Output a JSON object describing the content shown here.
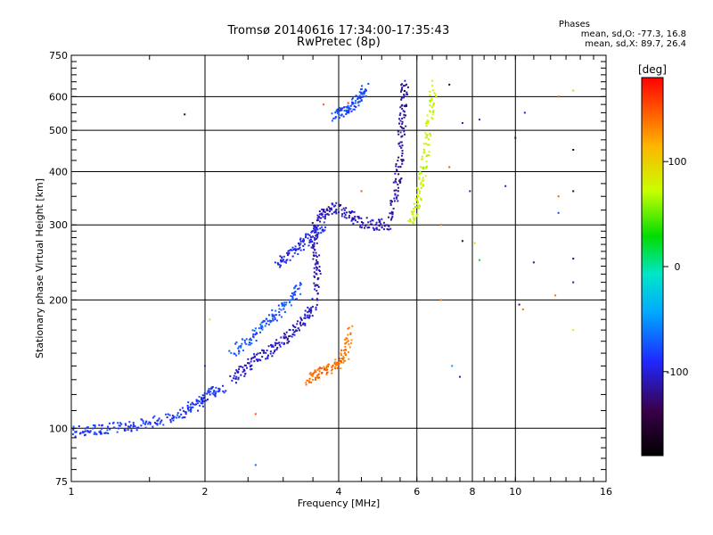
{
  "chart_data": {
    "type": "scatter",
    "title": "Tromsø 20140616 17:34:00-17:35:43",
    "subtitle": "RwPretec (8p)",
    "xlabel": "Frequency [MHz]",
    "ylabel": "Stationary phase Virtual Height [km]",
    "x_scale": "log",
    "y_scale": "log",
    "xlim": [
      1,
      16
    ],
    "ylim": [
      75,
      750
    ],
    "x_ticks": [
      1,
      2,
      4,
      6,
      8,
      10,
      16
    ],
    "y_ticks": [
      75,
      100,
      200,
      300,
      400,
      500,
      600,
      750
    ],
    "grid": true,
    "phase_stats": {
      "heading": "Phases",
      "o_mode": "mean, sd,O: -77.3, 16.8",
      "x_mode": "mean, sd,X:  89.7, 26.4"
    },
    "colorbar": {
      "label": "[deg]",
      "range": [
        -180,
        180
      ],
      "ticks": [
        "100",
        "0",
        "-100"
      ],
      "tick_values": [
        100,
        0,
        -100
      ]
    },
    "traces": [
      {
        "x": [
          1.0,
          1.1,
          1.2,
          1.35,
          1.5,
          1.7,
          1.85,
          1.95,
          2.05,
          2.2
        ],
        "y": [
          98,
          99,
          100,
          101,
          103,
          106,
          111,
          116,
          121,
          125
        ],
        "phase": -85
      },
      {
        "x": [
          2.3,
          2.45,
          2.6,
          2.8,
          3.0,
          3.2,
          3.4,
          3.55
        ],
        "y": [
          130,
          138,
          145,
          152,
          160,
          170,
          182,
          200
        ],
        "phase": -105
      },
      {
        "x": [
          3.55,
          3.6,
          3.5,
          3.55,
          3.7,
          3.9,
          4.2,
          4.5,
          4.9,
          5.2
        ],
        "y": [
          210,
          240,
          270,
          300,
          320,
          330,
          320,
          305,
          300,
          302
        ],
        "phase": -110
      },
      {
        "x": [
          5.2,
          5.4,
          5.5,
          5.55,
          5.6,
          5.65
        ],
        "y": [
          310,
          360,
          420,
          500,
          580,
          650
        ],
        "phase": -115
      },
      {
        "x": [
          5.8,
          6.0,
          6.15,
          6.3,
          6.45,
          6.55
        ],
        "y": [
          300,
          330,
          380,
          450,
          540,
          640
        ],
        "phase": 75
      },
      {
        "x": [
          3.4,
          3.6,
          3.8,
          4.0,
          4.15,
          4.25
        ],
        "y": [
          130,
          134,
          138,
          142,
          150,
          170
        ],
        "phase": 140
      },
      {
        "x": [
          2.9,
          3.1,
          3.3,
          3.5,
          3.7
        ],
        "y": [
          240,
          255,
          270,
          285,
          300
        ],
        "phase": -95
      },
      {
        "x": [
          3.9,
          4.1,
          4.3,
          4.5,
          4.6
        ],
        "y": [
          540,
          555,
          570,
          600,
          630
        ],
        "phase": -80
      },
      {
        "x": [
          2.3,
          2.5,
          2.7,
          2.9,
          3.1,
          3.3
        ],
        "y": [
          150,
          160,
          175,
          185,
          200,
          215
        ],
        "phase": -75
      }
    ],
    "scattered_points": [
      {
        "x": 1.8,
        "y": 545,
        "phase": -150
      },
      {
        "x": 7.1,
        "y": 640,
        "phase": -150
      },
      {
        "x": 7.6,
        "y": 520,
        "phase": -100
      },
      {
        "x": 8.3,
        "y": 530,
        "phase": -90
      },
      {
        "x": 9.5,
        "y": 370,
        "phase": -110
      },
      {
        "x": 10.0,
        "y": 480,
        "phase": -140
      },
      {
        "x": 10.5,
        "y": 550,
        "phase": -100
      },
      {
        "x": 12.5,
        "y": 600,
        "phase": 150
      },
      {
        "x": 12.5,
        "y": 350,
        "phase": 150
      },
      {
        "x": 12.5,
        "y": 320,
        "phase": -80
      },
      {
        "x": 12.3,
        "y": 205,
        "phase": 140
      },
      {
        "x": 13.5,
        "y": 620,
        "phase": 100
      },
      {
        "x": 13.5,
        "y": 450,
        "phase": -150
      },
      {
        "x": 13.5,
        "y": 360,
        "phase": -150
      },
      {
        "x": 13.5,
        "y": 250,
        "phase": -130
      },
      {
        "x": 13.5,
        "y": 220,
        "phase": -110
      },
      {
        "x": 13.5,
        "y": 170,
        "phase": 80
      },
      {
        "x": 11.0,
        "y": 245,
        "phase": -120
      },
      {
        "x": 10.2,
        "y": 195,
        "phase": -130
      },
      {
        "x": 10.4,
        "y": 190,
        "phase": 140
      },
      {
        "x": 8.1,
        "y": 272,
        "phase": 100
      },
      {
        "x": 8.3,
        "y": 248,
        "phase": 20
      },
      {
        "x": 7.6,
        "y": 275,
        "phase": -150
      },
      {
        "x": 7.2,
        "y": 140,
        "phase": -50
      },
      {
        "x": 7.5,
        "y": 132,
        "phase": -100
      },
      {
        "x": 6.8,
        "y": 200,
        "phase": 140
      },
      {
        "x": 6.8,
        "y": 300,
        "phase": 140
      },
      {
        "x": 7.1,
        "y": 410,
        "phase": 150
      },
      {
        "x": 7.9,
        "y": 360,
        "phase": -110
      },
      {
        "x": 2.6,
        "y": 82,
        "phase": -70
      },
      {
        "x": 2.0,
        "y": 140,
        "phase": -90
      },
      {
        "x": 2.05,
        "y": 180,
        "phase": 80
      },
      {
        "x": 2.6,
        "y": 108,
        "phase": 150
      },
      {
        "x": 4.5,
        "y": 360,
        "phase": 150
      },
      {
        "x": 4.2,
        "y": 580,
        "phase": 140
      },
      {
        "x": 3.7,
        "y": 575,
        "phase": 150
      }
    ]
  }
}
